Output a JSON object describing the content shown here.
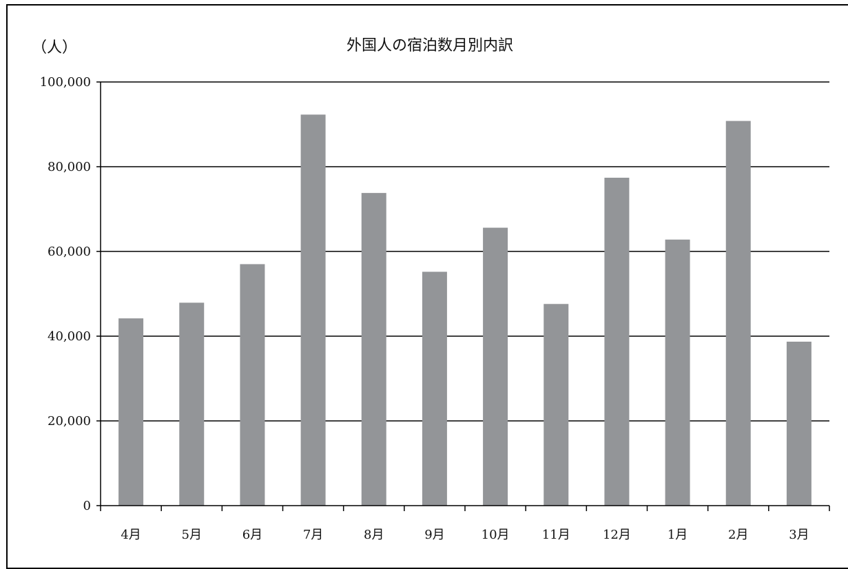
{
  "chart_data": {
    "type": "bar",
    "title": "外国人の宿泊数月別内訳",
    "unit_label": "（人）",
    "categories": [
      "4月",
      "5月",
      "6月",
      "7月",
      "8月",
      "9月",
      "10月",
      "11月",
      "12月",
      "1月",
      "2月",
      "3月"
    ],
    "values": [
      44200,
      47900,
      57000,
      92300,
      73800,
      55200,
      65600,
      47600,
      77400,
      62800,
      90800,
      38700
    ],
    "ylim": [
      0,
      100000
    ],
    "yticks": [
      0,
      20000,
      40000,
      60000,
      80000,
      100000
    ],
    "ytick_labels": [
      "0",
      "20,000",
      "40,000",
      "60,000",
      "80,000",
      "100,000"
    ],
    "grid": true,
    "legend": "none",
    "bar_color": "#939598"
  }
}
